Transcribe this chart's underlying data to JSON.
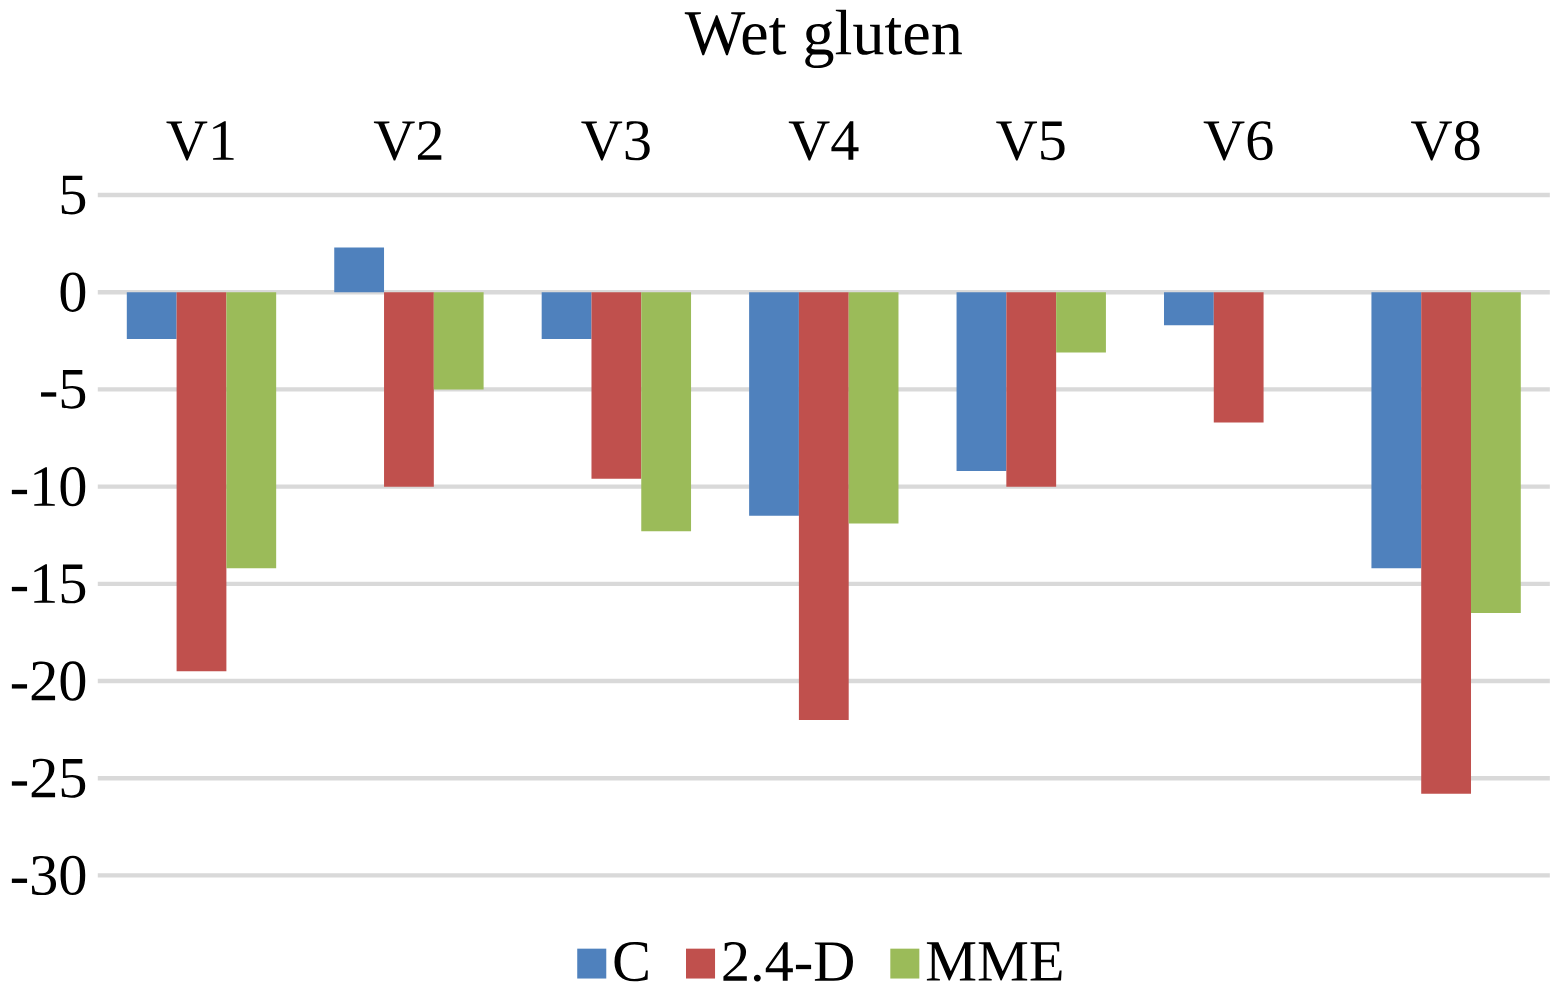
{
  "chart_data": {
    "type": "bar",
    "title": "Wet gluten",
    "categories": [
      "V1",
      "V2",
      "V3",
      "V4",
      "V5",
      "V6",
      "V8"
    ],
    "series": [
      {
        "name": "C",
        "color": "#4f81bd",
        "values": [
          -2.4,
          2.3,
          -2.4,
          -11.5,
          -9.2,
          -1.7,
          -14.2
        ]
      },
      {
        "name": "2.4-D",
        "color": "#c0504d",
        "values": [
          -19.5,
          -10.0,
          -9.6,
          -22.0,
          -10.0,
          -6.7,
          -25.8
        ]
      },
      {
        "name": "MME",
        "color": "#9bbb59",
        "values": [
          -14.2,
          -5.0,
          -12.3,
          -11.9,
          -3.1,
          0,
          -16.5
        ]
      }
    ],
    "ylim": [
      -30,
      5
    ],
    "yticks": [
      -30,
      -25,
      -20,
      -15,
      -10,
      -5,
      0,
      5
    ],
    "grid": "y",
    "legend": "bottom"
  }
}
